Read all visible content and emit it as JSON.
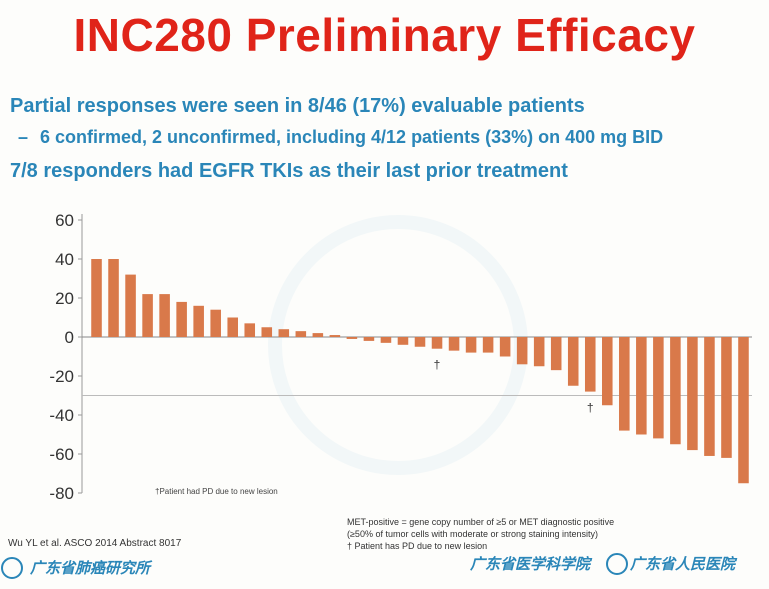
{
  "title": "INC280 Preliminary Efficacy",
  "bullets": {
    "b1": "Partial responses were seen in 8/46 (17%) evaluable patients",
    "b2_dash": "–",
    "b2": "6 confirmed, 2 unconfirmed, including 4/12 patients (33%) on 400 mg BID",
    "b3": "7/8 responders had EGFR TKIs as their last prior treatment"
  },
  "annotation_top": "",
  "pd_note": "†Patient had PD due to new lesion",
  "met_footnote": [
    "MET-positive = gene copy number of ≥5 or MET diagnostic positive",
    "(≥50% of tumor cells with moderate or strong staining intensity)",
    "† Patient has PD due to new lesion"
  ],
  "citation": "Wu YL et al. ASCO 2014 Abstract 8017",
  "logos": {
    "left": "广东省肺癌研究所",
    "mid": "广东省医学科学院",
    "right": "广东省人民医院"
  },
  "colors": {
    "title": "#e02419",
    "bullet_text": "#2a86b8",
    "bar_fill": "#d9794a",
    "threshold_line": "#bbbbbb",
    "zero_line": "#888888"
  },
  "chart_data": {
    "type": "bar",
    "title": "",
    "xlabel": "",
    "ylabel": "",
    "ylim": [
      -80,
      60
    ],
    "yticks": [
      60,
      40,
      20,
      0,
      -20,
      -40,
      -60,
      -80
    ],
    "reference_line": -30,
    "values": [
      40,
      40,
      32,
      22,
      22,
      18,
      16,
      14,
      10,
      7,
      5,
      4,
      3,
      2,
      1,
      -1,
      -2,
      -3,
      -4,
      -5,
      -6,
      -7,
      -8,
      -8,
      -10,
      -14,
      -15,
      -17,
      -25,
      -28,
      -35,
      -48,
      -50,
      -52,
      -55,
      -58,
      -61,
      -62,
      -75
    ],
    "markers": [
      {
        "bar": 29,
        "symbol": "†"
      },
      {
        "bar": 20,
        "symbol": "†"
      }
    ]
  }
}
